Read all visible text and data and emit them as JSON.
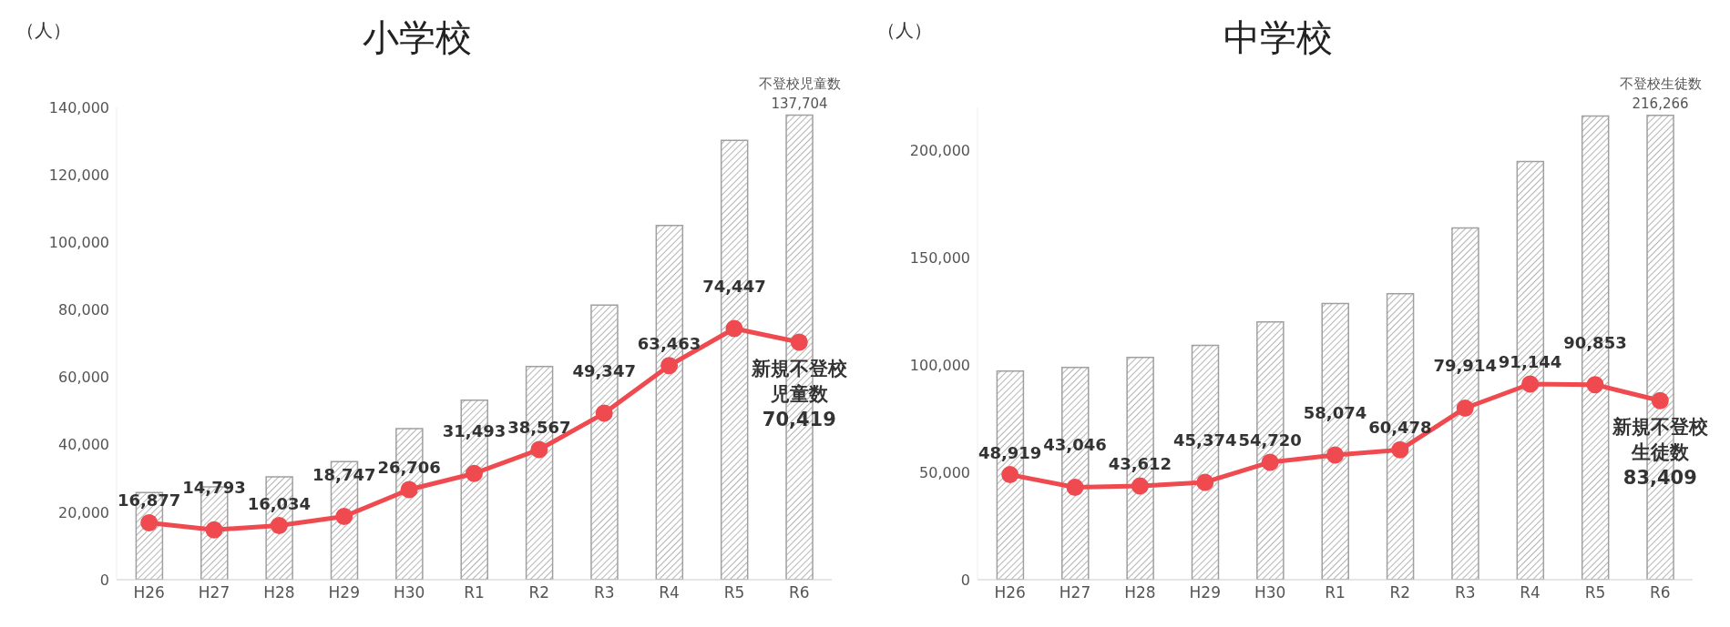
{
  "chart_data": [
    {
      "type": "bar",
      "title": "小学校",
      "ylabel": "（人）",
      "categories": [
        "H26",
        "H27",
        "H28",
        "H29",
        "H30",
        "R1",
        "R2",
        "R3",
        "R4",
        "R5",
        "R6"
      ],
      "ylim": [
        0,
        140000
      ],
      "yticks": [
        {
          "value": 0,
          "label": "0"
        },
        {
          "value": 20000,
          "label": "20,000"
        },
        {
          "value": 40000,
          "label": "40,000"
        },
        {
          "value": 60000,
          "label": "60,000"
        },
        {
          "value": 80000,
          "label": "80,000"
        },
        {
          "value": 100000,
          "label": "100,000"
        },
        {
          "value": 120000,
          "label": "120,000"
        },
        {
          "value": 140000,
          "label": "140,000"
        }
      ],
      "grid": false,
      "marker": "circle",
      "series": [
        {
          "name": "不登校児童数",
          "color": "#a0a0a0",
          "values": [
            25800,
            27500,
            30500,
            35000,
            44800,
            53200,
            63200,
            81400,
            105000,
            130200,
            137704
          ],
          "value_labels": [
            null,
            null,
            null,
            null,
            null,
            null,
            null,
            null,
            null,
            null,
            "137,704"
          ]
        },
        {
          "name": "新規不登校児童数",
          "type": "line",
          "color": "#ef4a4f",
          "values": [
            16877,
            14793,
            16034,
            18747,
            26706,
            31493,
            38567,
            49347,
            63463,
            74447,
            70419
          ],
          "value_labels": [
            "16,877",
            "14,793",
            "16,034",
            "18,747",
            "26,706",
            "31,493",
            "38,567",
            "49,347",
            "63,463",
            "74,447",
            "70,419"
          ]
        }
      ]
    },
    {
      "type": "bar",
      "title": "中学校",
      "ylabel": "（人）",
      "categories": [
        "H26",
        "H27",
        "H28",
        "H29",
        "H30",
        "R1",
        "R2",
        "R3",
        "R4",
        "R5",
        "R6"
      ],
      "ylim": [
        0,
        220000
      ],
      "yticks": [
        {
          "value": 0,
          "label": "0"
        },
        {
          "value": 50000,
          "label": "50,000"
        },
        {
          "value": 100000,
          "label": "100,000"
        },
        {
          "value": 150000,
          "label": "150,000"
        },
        {
          "value": 200000,
          "label": "200,000"
        }
      ],
      "grid": false,
      "marker": "circle",
      "series": [
        {
          "name": "不登校生徒数",
          "color": "#a0a0a0",
          "values": [
            97200,
            98900,
            103500,
            109200,
            120100,
            128600,
            133200,
            163800,
            194800,
            216000,
            216266
          ],
          "value_labels": [
            null,
            null,
            null,
            null,
            null,
            null,
            null,
            null,
            null,
            null,
            "216,266"
          ]
        },
        {
          "name": "新規不登校生徒数",
          "type": "line",
          "color": "#ef4a4f",
          "values": [
            48919,
            43046,
            43612,
            45374,
            54720,
            58074,
            60478,
            79914,
            91144,
            90853,
            83409
          ],
          "value_labels": [
            "48,919",
            "43,046",
            "43,612",
            "45,374",
            "54,720",
            "58,074",
            "60,478",
            "79,914",
            "91,144",
            "90,853",
            "83,409"
          ]
        }
      ]
    }
  ]
}
